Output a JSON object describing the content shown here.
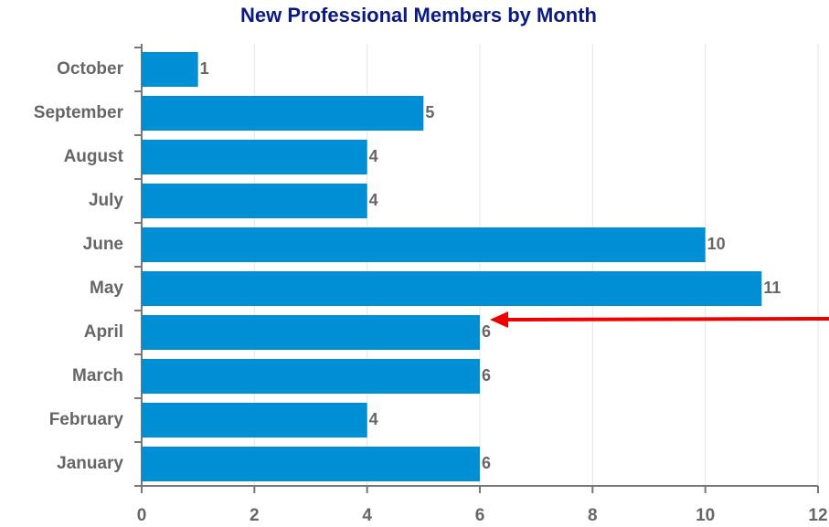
{
  "chart_data": {
    "type": "bar",
    "orientation": "horizontal",
    "title": "New Professional Members by Month",
    "categories": [
      "October",
      "September",
      "August",
      "July",
      "June",
      "May",
      "April",
      "March",
      "February",
      "January"
    ],
    "values": [
      1,
      5,
      4,
      4,
      10,
      11,
      6,
      6,
      4,
      6
    ],
    "color": "#008fd5",
    "xlim": [
      0,
      12
    ],
    "xticks": [
      0,
      2,
      4,
      6,
      8,
      10,
      12
    ],
    "grid": true
  }
}
